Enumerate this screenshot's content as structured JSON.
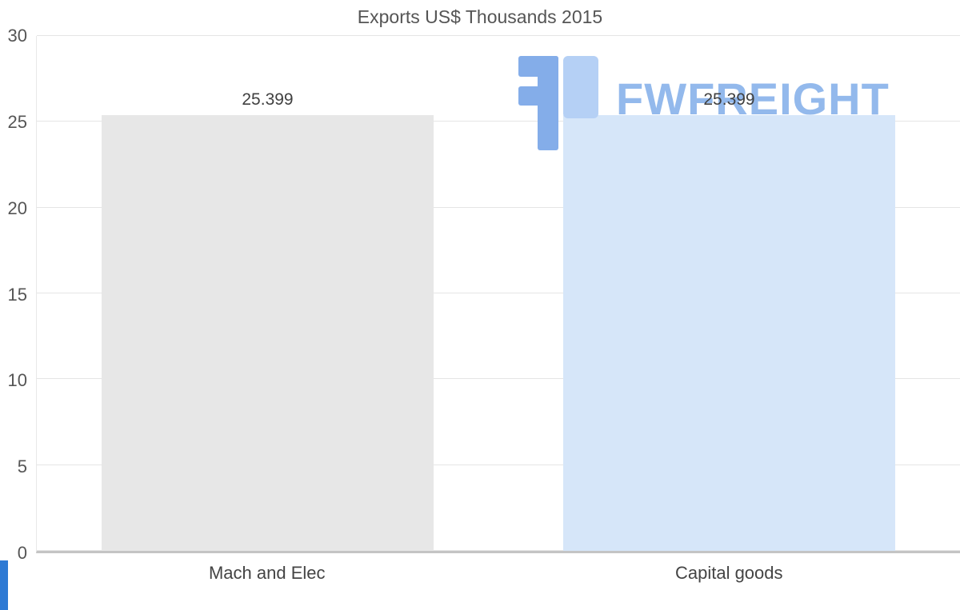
{
  "title": "Exports US$ Thousands 2015",
  "watermark": {
    "text": "FWFREIGHT",
    "color": "#93b9ec",
    "icon_color_medium": "#84ade9",
    "icon_color_light": "#b5d0f5"
  },
  "chart_data": {
    "type": "bar",
    "title": "Exports US$ Thousands 2015",
    "categories": [
      "Mach and Elec",
      "Capital goods"
    ],
    "values": [
      25.399,
      25.399
    ],
    "value_labels": [
      "25.399",
      "25.399"
    ],
    "bar_colors": [
      "#e7e7e7",
      "#d6e6f9"
    ],
    "xlabel": "",
    "ylabel": "",
    "ylim": [
      0,
      30
    ],
    "yticks": [
      0,
      5,
      10,
      15,
      20,
      25,
      30
    ],
    "grid": "horizontal",
    "legend": "none"
  },
  "style": {
    "grid_color": "#e5e5e5",
    "axis_line_color": "#c4c4c4",
    "tick_label_color": "#555555",
    "title_color": "#555555",
    "value_label_color": "#404040",
    "category_label_color": "#444444",
    "corner_accent_color": "#2e7ad4"
  }
}
